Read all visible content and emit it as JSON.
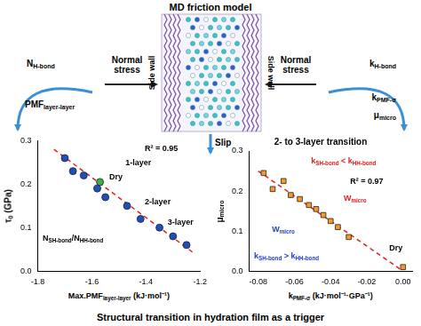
{
  "header": "MD friction model",
  "side_wall_labels": [
    "Side wall",
    "Side wall"
  ],
  "normal_stress_labels": [
    "Normal stress",
    "Normal stress"
  ],
  "slip_label": "Slip",
  "left_flow": [
    [
      "N",
      {
        "sub": "H-bond"
      }
    ],
    [
      "PMF",
      {
        "sub": "layer-layer"
      }
    ]
  ],
  "right_flow": [
    [
      "k",
      {
        "sub": "H-bond"
      }
    ],
    [
      "k",
      {
        "sub": "PMF-σ"
      }
    ],
    [
      "μ",
      {
        "sub": "micro"
      }
    ]
  ],
  "caption": "Structural transition in hydration film as a trigger",
  "chart_data": [
    {
      "type": "scatter",
      "x_label": [
        "Max.PMF",
        {
          "sub": "layer-layer"
        },
        " (kJ·mol⁻¹)"
      ],
      "y_label": [
        "τ",
        {
          "sub": "0"
        },
        " (GPa)"
      ],
      "xlim": [
        -1.8,
        -1.2
      ],
      "xticks": [
        -1.8,
        -1.6,
        -1.4,
        -1.2
      ],
      "ylim": [
        0,
        0.3
      ],
      "yticks": [
        {
          "value": 0,
          "label": "0.0"
        },
        0.1,
        0.2,
        0.3
      ],
      "grid": false,
      "series": [
        {
          "color": "#1f4fbf",
          "marker": "circle",
          "x": [
            -1.7,
            -1.67,
            -1.63,
            -1.58,
            -1.55,
            -1.47,
            -1.42,
            -1.35,
            -1.3,
            -1.25
          ],
          "values": [
            0.26,
            0.23,
            0.22,
            0.19,
            0.17,
            0.15,
            0.12,
            0.1,
            0.08,
            0.06
          ]
        },
        {
          "color": "#3cb043",
          "marker": "circle",
          "x": [
            -1.57
          ],
          "values": [
            0.205
          ]
        },
        {
          "type": "line",
          "color": "#e02020",
          "line_style": "dashed",
          "x": [
            -1.74,
            -1.22
          ],
          "values": [
            0.28,
            0.04
          ]
        }
      ],
      "annotations": [
        {
          "text": [
            "R² = 0.95"
          ],
          "color": "#000000"
        },
        {
          "text": [
            "1-layer"
          ],
          "color": "#000000"
        },
        {
          "text": [
            "Dry"
          ],
          "color": "#000000"
        },
        {
          "text": [
            "2-layer"
          ],
          "color": "#000000"
        },
        {
          "text": [
            "3-layer"
          ],
          "color": "#000000"
        },
        {
          "text": [
            "N",
            {
              "sub": "SH-bond"
            },
            "/N",
            {
              "sub": "HH-bond"
            }
          ],
          "color": "#000000"
        }
      ]
    },
    {
      "type": "scatter",
      "title": "2- to 3-layer transition",
      "x_label": [
        "k",
        {
          "sub": "PMF-σ"
        },
        " (kJ·mol⁻¹·GPa⁻¹)"
      ],
      "y_label": [
        "μ",
        {
          "sub": "micro"
        }
      ],
      "xlim": [
        -0.085,
        0.005
      ],
      "xticks": [
        -0.08,
        -0.06,
        -0.04,
        -0.02,
        {
          "value": 0,
          "label": "0.00"
        }
      ],
      "ylim": [
        0,
        0.3
      ],
      "yticks": [
        {
          "value": 0,
          "label": "0.0"
        },
        0.1,
        0.2,
        0.3
      ],
      "grid": false,
      "series": [
        {
          "color": "#f39a2c",
          "marker": "square",
          "x": [
            -0.077,
            -0.072,
            -0.066,
            -0.062,
            -0.057,
            -0.052,
            -0.048,
            -0.044,
            -0.04,
            -0.036,
            -0.03,
            0
          ],
          "values": [
            0.245,
            0.205,
            0.225,
            0.19,
            0.18,
            0.165,
            0.155,
            0.14,
            0.125,
            0.11,
            0.085,
            0.01
          ]
        },
        {
          "type": "line",
          "color": "#e02020",
          "line_style": "dashed",
          "x": [
            -0.08,
            0
          ],
          "values": [
            0.25,
            0
          ]
        }
      ],
      "annotations": [
        {
          "text": [
            "R² = 0.97"
          ],
          "color": "#000000"
        },
        {
          "text": [
            "k",
            {
              "sub": "SH-bond"
            },
            " < k",
            {
              "sub": "HH-bond"
            }
          ],
          "color": "#e02020"
        },
        {
          "text": [
            "W",
            {
              "sub": "micro"
            }
          ],
          "color": "#e02020"
        },
        {
          "text": [
            "W",
            {
              "sub": "micro"
            }
          ],
          "color": "#2040d0"
        },
        {
          "text": [
            "k",
            {
              "sub": "SH-bond"
            },
            " > k",
            {
              "sub": "HH-bond"
            }
          ],
          "color": "#2040d0"
        },
        {
          "text": [
            "Dry"
          ],
          "color": "#000000"
        }
      ]
    }
  ]
}
